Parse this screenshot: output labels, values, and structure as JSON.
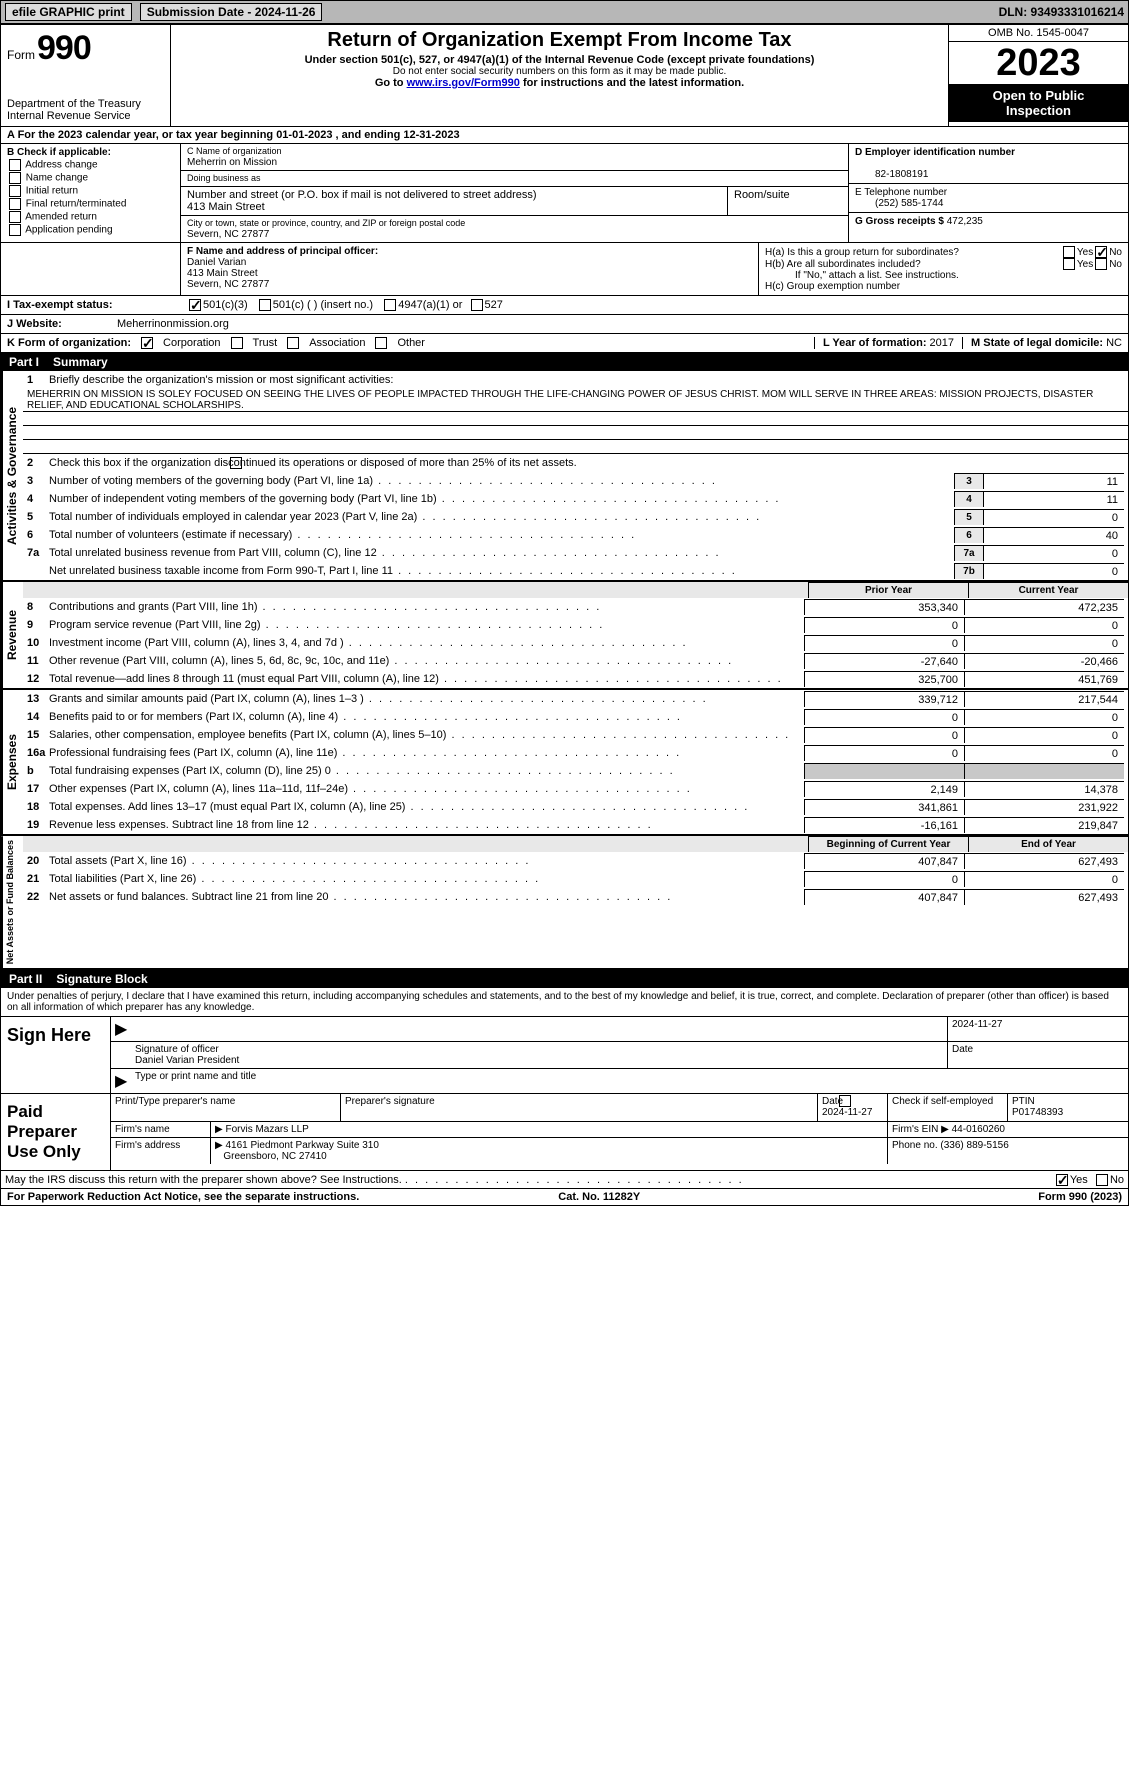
{
  "header_bar": {
    "efile": "efile GRAPHIC print",
    "sub_label": "Submission Date - 2024-11-26",
    "dln": "DLN: 93493331016214"
  },
  "top": {
    "form_word": "Form",
    "form_num": "990",
    "title": "Return of Organization Exempt From Income Tax",
    "subtitle": "Under section 501(c), 527, or 4947(a)(1) of the Internal Revenue Code (except private foundations)",
    "ssn_note": "Do not enter social security numbers on this form as it may be made public.",
    "go_to": "Go to ",
    "go_link": "www.irs.gov/Form990",
    "go_suffix": " for instructions and the latest information.",
    "dept": "Department of the Treasury",
    "irs": "Internal Revenue Service",
    "omb": "OMB No. 1545-0047",
    "year": "2023",
    "open1": "Open to Public",
    "open2": "Inspection"
  },
  "row_a": "A For the 2023 calendar year, or tax year beginning 01-01-2023    , and ending 12-31-2023",
  "col_b": {
    "lbl": "B Check if applicable:",
    "items": [
      "Address change",
      "Name change",
      "Initial return",
      "Final return/terminated",
      "Amended return",
      "Application pending"
    ]
  },
  "col_c": {
    "name_lbl": "C Name of organization",
    "name": "Meherrin on Mission",
    "dba_lbl": "Doing business as",
    "dba": "",
    "street_lbl": "Number and street (or P.O. box if mail is not delivered to street address)",
    "street": "413 Main Street",
    "room_lbl": "Room/suite",
    "city_lbl": "City or town, state or province, country, and ZIP or foreign postal code",
    "city": "Severn, NC  27877"
  },
  "col_d": {
    "ein_lbl": "D Employer identification number",
    "ein": "82-1808191",
    "tel_lbl": "E Telephone number",
    "tel": "(252) 585-1744",
    "gross_lbl": "G Gross receipts $",
    "gross": "472,235"
  },
  "row_f": {
    "f_lbl": "F  Name and address of principal officer:",
    "officer": "Daniel Varian",
    "addr1": "413 Main Street",
    "addr2": "Severn, NC  27877",
    "ha": "H(a)  Is this a group return for subordinates?",
    "hb": "H(b)  Are all subordinates included?",
    "hb_note": "If \"No,\" attach a list. See instructions.",
    "hc": "H(c)  Group exemption number",
    "yes": "Yes",
    "no": "No"
  },
  "row_i": {
    "lbl": "I   Tax-exempt status:",
    "o1": "501(c)(3)",
    "o2": "501(c) (  ) (insert no.)",
    "o3": "4947(a)(1) or",
    "o4": "527"
  },
  "row_j": {
    "lbl": "J   Website:",
    "val": "Meherrinonmission.org"
  },
  "row_k": {
    "lbl": "K Form of organization:",
    "o1": "Corporation",
    "o2": "Trust",
    "o3": "Association",
    "o4": "Other",
    "l_lbl": "L Year of formation: ",
    "l_val": "2017",
    "m_lbl": "M State of legal domicile: ",
    "m_val": "NC"
  },
  "part1": {
    "hdr_pn": "Part I",
    "hdr_ti": "Summary",
    "l1": "Briefly describe the organization's mission or most significant activities:",
    "mission": "MEHERRIN ON MISSION IS SOLEY FOCUSED ON SEEING THE LIVES OF PEOPLE IMPACTED THROUGH THE LIFE-CHANGING POWER OF JESUS CHRIST. MOM WILL SERVE IN THREE AREAS: MISSION PROJECTS, DISASTER RELIEF, AND EDUCATIONAL SCHOLARSHIPS.",
    "l2": "Check this box         if the organization discontinued its operations or disposed of more than 25% of its net assets.",
    "lines_gov": [
      {
        "n": "3",
        "t": "Number of voting members of the governing body (Part VI, line 1a)",
        "c": "3",
        "v": "11"
      },
      {
        "n": "4",
        "t": "Number of independent voting members of the governing body (Part VI, line 1b)",
        "c": "4",
        "v": "11"
      },
      {
        "n": "5",
        "t": "Total number of individuals employed in calendar year 2023 (Part V, line 2a)",
        "c": "5",
        "v": "0"
      },
      {
        "n": "6",
        "t": "Total number of volunteers (estimate if necessary)",
        "c": "6",
        "v": "40"
      },
      {
        "n": "7a",
        "t": "Total unrelated business revenue from Part VIII, column (C), line 12",
        "c": "7a",
        "v": "0"
      },
      {
        "n": "",
        "t": "Net unrelated business taxable income from Form 990-T, Part I, line 11",
        "c": "7b",
        "v": "0"
      }
    ],
    "hdr_prior": "Prior Year",
    "hdr_curr": "Current Year",
    "rev": [
      {
        "n": "8",
        "t": "Contributions and grants (Part VIII, line 1h)",
        "p": "353,340",
        "c": "472,235"
      },
      {
        "n": "9",
        "t": "Program service revenue (Part VIII, line 2g)",
        "p": "0",
        "c": "0"
      },
      {
        "n": "10",
        "t": "Investment income (Part VIII, column (A), lines 3, 4, and 7d )",
        "p": "0",
        "c": "0"
      },
      {
        "n": "11",
        "t": "Other revenue (Part VIII, column (A), lines 5, 6d, 8c, 9c, 10c, and 11e)",
        "p": "-27,640",
        "c": "-20,466"
      },
      {
        "n": "12",
        "t": "Total revenue—add lines 8 through 11 (must equal Part VIII, column (A), line 12)",
        "p": "325,700",
        "c": "451,769"
      }
    ],
    "exp": [
      {
        "n": "13",
        "t": "Grants and similar amounts paid (Part IX, column (A), lines 1–3 )",
        "p": "339,712",
        "c": "217,544"
      },
      {
        "n": "14",
        "t": "Benefits paid to or for members (Part IX, column (A), line 4)",
        "p": "0",
        "c": "0"
      },
      {
        "n": "15",
        "t": "Salaries, other compensation, employee benefits (Part IX, column (A), lines 5–10)",
        "p": "0",
        "c": "0"
      },
      {
        "n": "16a",
        "t": "Professional fundraising fees (Part IX, column (A), line 11e)",
        "p": "0",
        "c": "0"
      },
      {
        "n": "b",
        "t": "Total fundraising expenses (Part IX, column (D), line 25) 0",
        "p": "__gray__",
        "c": "__gray__"
      },
      {
        "n": "17",
        "t": "Other expenses (Part IX, column (A), lines 11a–11d, 11f–24e)",
        "p": "2,149",
        "c": "14,378"
      },
      {
        "n": "18",
        "t": "Total expenses. Add lines 13–17 (must equal Part IX, column (A), line 25)",
        "p": "341,861",
        "c": "231,922"
      },
      {
        "n": "19",
        "t": "Revenue less expenses. Subtract line 18 from line 12",
        "p": "-16,161",
        "c": "219,847"
      }
    ],
    "hdr_boy": "Beginning of Current Year",
    "hdr_eoy": "End of Year",
    "net": [
      {
        "n": "20",
        "t": "Total assets (Part X, line 16)",
        "p": "407,847",
        "c": "627,493"
      },
      {
        "n": "21",
        "t": "Total liabilities (Part X, line 26)",
        "p": "0",
        "c": "0"
      },
      {
        "n": "22",
        "t": "Net assets or fund balances. Subtract line 21 from line 20",
        "p": "407,847",
        "c": "627,493"
      }
    ],
    "vert_gov": "Activities & Governance",
    "vert_rev": "Revenue",
    "vert_exp": "Expenses",
    "vert_net": "Net Assets or Fund Balances"
  },
  "part2": {
    "hdr_pn": "Part II",
    "hdr_ti": "Signature Block",
    "penalties": "Under penalties of perjury, I declare that I have examined this return, including accompanying schedules and statements, and to the best of my knowledge and belief, it is true, correct, and complete. Declaration of preparer (other than officer) is based on all information of which preparer has any knowledge.",
    "sign_here": "Sign Here",
    "sig_off_lbl": "Signature of officer",
    "sig_name": "Daniel Varian  President",
    "type_lbl": "Type or print name and title",
    "date_lbl": "Date",
    "date1": "2024-11-27",
    "paid": "Paid Preparer Use Only",
    "prep_name_lbl": "Print/Type preparer's name",
    "prep_sig_lbl": "Preparer's signature",
    "prep_date_lbl": "Date",
    "prep_date": "2024-11-27",
    "check_lbl": "Check        if self-employed",
    "ptin_lbl": "PTIN",
    "ptin": "P01748393",
    "firm_name_lbl": "Firm's name",
    "firm_name": "Forvis Mazars LLP",
    "firm_ein_lbl": "Firm's EIN",
    "firm_ein": "44-0160260",
    "firm_addr_lbl": "Firm's address",
    "firm_addr1": "4161 Piedmont Parkway Suite 310",
    "firm_addr2": "Greensboro, NC  27410",
    "phone_lbl": "Phone no.",
    "phone": "(336) 889-5156",
    "discuss": "May the IRS discuss this return with the preparer shown above? See Instructions.",
    "yes": "Yes",
    "no": "No"
  },
  "footer": {
    "l": "For Paperwork Reduction Act Notice, see the separate instructions.",
    "m": "Cat. No. 11282Y",
    "r": "Form 990 (2023)"
  }
}
